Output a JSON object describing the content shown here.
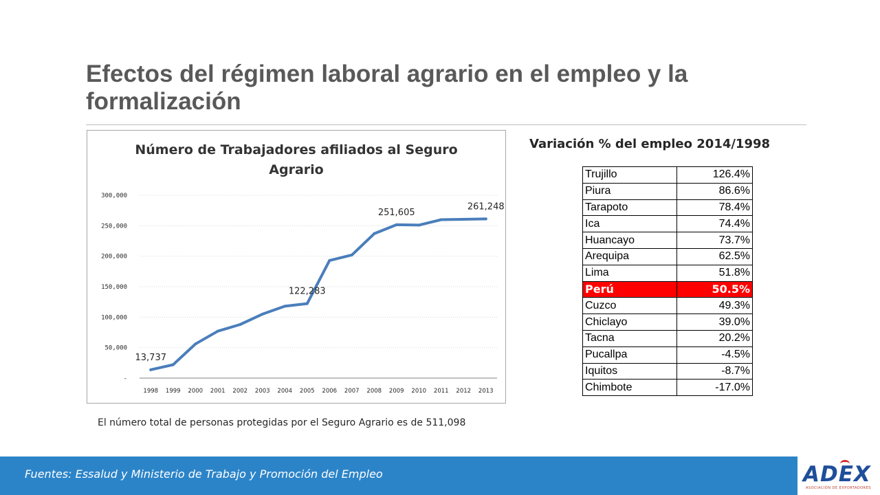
{
  "slide": {
    "title": "Efectos del régimen laboral agrario en el empleo y la formalización",
    "note": "El número total de personas protegidas por el Seguro Agrario es de 511,098"
  },
  "chart_data": {
    "type": "line",
    "title_line1": "Número de Trabajadores afiliados al Seguro",
    "title_line2": "Agrario",
    "x": [
      "1998",
      "1999",
      "2000",
      "2001",
      "2002",
      "2003",
      "2004",
      "2005",
      "2006",
      "2007",
      "2008",
      "2009",
      "2010",
      "2011",
      "2012",
      "2013"
    ],
    "series": [
      {
        "values": [
          13737,
          22000,
          56000,
          77000,
          88000,
          105000,
          118000,
          122283,
          193000,
          202000,
          237000,
          251605,
          251000,
          260000,
          260500,
          261248
        ]
      }
    ],
    "ylim": [
      0,
      300000
    ],
    "yticks": [
      0,
      50000,
      100000,
      150000,
      200000,
      250000,
      300000
    ],
    "ytick_labels": [
      "-",
      "50,000",
      "100,000",
      "150,000",
      "200,000",
      "250,000",
      "300,000"
    ],
    "data_labels": [
      {
        "index": 0,
        "text": "13,737"
      },
      {
        "index": 7,
        "text": "122,283"
      },
      {
        "index": 11,
        "text": "251,605"
      },
      {
        "index": 15,
        "text": "261,248"
      }
    ],
    "line_color": "#4a7ebb",
    "grid": true,
    "legend": "none"
  },
  "table": {
    "title": "Variación % del empleo 2014/1998",
    "rows": [
      {
        "name": "Trujillo",
        "value": "126.4%"
      },
      {
        "name": "Piura",
        "value": "86.6%"
      },
      {
        "name": "Tarapoto",
        "value": "78.4%"
      },
      {
        "name": "Ica",
        "value": "74.4%"
      },
      {
        "name": "Huancayo",
        "value": "73.7%"
      },
      {
        "name": "Arequipa",
        "value": "62.5%"
      },
      {
        "name": "Lima",
        "value": "51.8%"
      },
      {
        "name": "Perú",
        "value": "50.5%"
      },
      {
        "name": "Cuzco",
        "value": "49.3%"
      },
      {
        "name": "Chiclayo",
        "value": "39.0%"
      },
      {
        "name": "Tacna",
        "value": "20.2%"
      },
      {
        "name": "Pucallpa",
        "value": "-4.5%"
      },
      {
        "name": "Iquitos",
        "value": "-8.7%"
      },
      {
        "name": "Chimbote",
        "value": "-17.0%"
      }
    ],
    "highlight_color": "#ff0000"
  },
  "footer": {
    "sources": "Fuentes: Essalud y Ministerio de Trabajo y Promoción del Empleo",
    "bar_color": "#2c84c8"
  },
  "logo": {
    "word": "ADEX",
    "subtitle": "ASOCIACIÓN DE EXPORTADORES"
  }
}
